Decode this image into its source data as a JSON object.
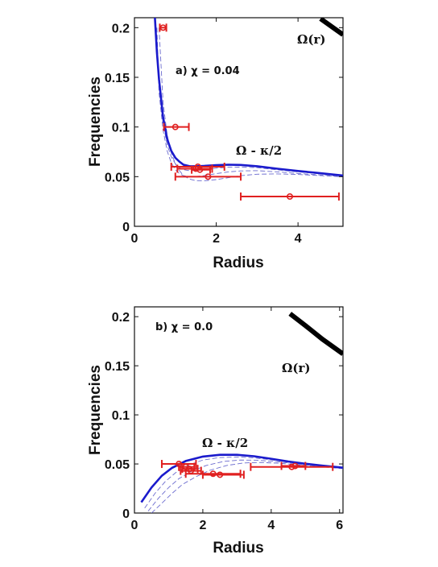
{
  "chart_data": [
    {
      "type": "line",
      "panel_label": "a) χ = 0.04",
      "xlabel": "Radius",
      "ylabel": "Frequencies",
      "xlim": [
        0,
        5.1
      ],
      "ylim": [
        0,
        0.21
      ],
      "xticks": [
        0,
        2,
        4
      ],
      "yticks": [
        0,
        0.05,
        0.1,
        0.15,
        0.2
      ],
      "xtick_labels": [
        "0",
        "2",
        "4"
      ],
      "ytick_labels": [
        "0",
        "0.05",
        "0.1",
        "0.15",
        "0.2"
      ],
      "annotations": [
        "Ω - κ/2",
        "Ω(r)"
      ],
      "omega_curve": {
        "x": [
          4.55,
          5.1
        ],
        "y": [
          0.209,
          0.193
        ]
      },
      "blue_curve": {
        "x": [
          0.5,
          0.55,
          0.6,
          0.7,
          0.8,
          0.9,
          1.0,
          1.1,
          1.2,
          1.35,
          1.5,
          1.7,
          2.0,
          2.3,
          2.6,
          3.0,
          3.5,
          4.0,
          4.5,
          5.1
        ],
        "y": [
          0.21,
          0.175,
          0.148,
          0.11,
          0.088,
          0.076,
          0.069,
          0.065,
          0.062,
          0.0605,
          0.0605,
          0.0608,
          0.0615,
          0.062,
          0.0618,
          0.0605,
          0.058,
          0.0557,
          0.0537,
          0.0512
        ]
      },
      "dashed_curves": [
        {
          "x": [
            0.5,
            0.6,
            0.7,
            0.8,
            0.9,
            1.0,
            1.1,
            1.2,
            1.35,
            1.5,
            1.7,
            2.0,
            2.3,
            2.6,
            3.0,
            3.5,
            4.0,
            4.5,
            5.1
          ],
          "y": [
            0.21,
            0.142,
            0.104,
            0.082,
            0.07,
            0.063,
            0.059,
            0.057,
            0.056,
            0.0562,
            0.057,
            0.0585,
            0.0595,
            0.0596,
            0.059,
            0.0568,
            0.0548,
            0.053,
            0.0507
          ]
        },
        {
          "x": [
            0.55,
            0.6,
            0.7,
            0.8,
            0.9,
            1.0,
            1.1,
            1.2,
            1.35,
            1.5,
            1.7,
            2.0,
            2.3,
            2.6,
            3.0,
            3.5,
            4.0,
            4.5,
            5.1
          ],
          "y": [
            0.2,
            0.135,
            0.097,
            0.076,
            0.064,
            0.057,
            0.053,
            0.051,
            0.05,
            0.0502,
            0.051,
            0.053,
            0.0548,
            0.0558,
            0.056,
            0.0548,
            0.0532,
            0.0518,
            0.05
          ]
        },
        {
          "x": [
            0.6,
            0.7,
            0.8,
            0.9,
            1.0,
            1.1,
            1.2,
            1.35,
            1.5,
            1.7,
            2.0,
            2.3,
            2.6,
            3.0,
            3.5,
            4.0,
            4.5,
            5.1
          ],
          "y": [
            0.2,
            0.125,
            0.092,
            0.074,
            0.063,
            0.056,
            0.051,
            0.0475,
            0.046,
            0.0458,
            0.047,
            0.049,
            0.051,
            0.0525,
            0.0528,
            0.0522,
            0.0512,
            0.0498
          ]
        }
      ],
      "error_points": [
        {
          "x": 0.7,
          "y": 0.2,
          "xerr": [
            0.62,
            0.78
          ]
        },
        {
          "x": 1.0,
          "y": 0.1,
          "xerr": [
            0.72,
            1.33
          ]
        },
        {
          "x": 1.5,
          "y": 0.058,
          "xerr": [
            1.05,
            1.9
          ]
        },
        {
          "x": 1.55,
          "y": 0.06,
          "xerr": [
            0.9,
            2.2
          ]
        },
        {
          "x": 1.6,
          "y": 0.057,
          "xerr": [
            1.4,
            1.85
          ]
        },
        {
          "x": 1.8,
          "y": 0.05,
          "xerr": [
            1.0,
            2.6
          ]
        },
        {
          "x": 3.8,
          "y": 0.03,
          "xerr": [
            2.6,
            5.0
          ]
        }
      ]
    },
    {
      "type": "line",
      "panel_label": "b) χ = 0.0",
      "xlabel": "Radius",
      "ylabel": "Frequencies",
      "xlim": [
        0,
        6.1
      ],
      "ylim": [
        0,
        0.21
      ],
      "xticks": [
        0,
        2,
        4,
        6
      ],
      "yticks": [
        0,
        0.05,
        0.1,
        0.15,
        0.2
      ],
      "xtick_labels": [
        "0",
        "2",
        "4",
        "6"
      ],
      "ytick_labels": [
        "0",
        "0.05",
        "0.1",
        "0.15",
        "0.2"
      ],
      "annotations": [
        "Ω - κ/2",
        "Ω(r)"
      ],
      "omega_curve": {
        "x": [
          4.55,
          5.0,
          5.5,
          6.1
        ],
        "y": [
          0.203,
          0.191,
          0.177,
          0.162
        ]
      },
      "blue_curve": {
        "x": [
          0.2,
          0.5,
          0.8,
          1.1,
          1.5,
          2.0,
          2.5,
          3.0,
          3.5,
          4.0,
          4.5,
          5.0,
          5.5,
          6.1
        ],
        "y": [
          0.011,
          0.026,
          0.038,
          0.046,
          0.053,
          0.0575,
          0.0593,
          0.0593,
          0.0578,
          0.0553,
          0.0525,
          0.0502,
          0.0482,
          0.0462
        ]
      },
      "dashed_curves": [
        {
          "x": [
            0.3,
            0.6,
            0.9,
            1.2,
            1.6,
            2.0,
            2.5,
            3.0,
            3.5,
            4.0,
            4.5,
            5.0,
            5.5,
            6.1
          ],
          "y": [
            0.005,
            0.02,
            0.032,
            0.041,
            0.049,
            0.054,
            0.0565,
            0.0572,
            0.0562,
            0.0542,
            0.0518,
            0.0496,
            0.0477,
            0.0458
          ]
        },
        {
          "x": [
            0.4,
            0.7,
            1.0,
            1.3,
            1.7,
            2.1,
            2.6,
            3.1,
            3.6,
            4.1,
            4.6,
            5.1,
            5.6,
            6.1
          ],
          "y": [
            0.002,
            0.015,
            0.026,
            0.035,
            0.043,
            0.0485,
            0.0525,
            0.054,
            0.0538,
            0.0525,
            0.0507,
            0.0488,
            0.0471,
            0.0455
          ]
        },
        {
          "x": [
            0.5,
            0.8,
            1.1,
            1.4,
            1.8,
            2.2,
            2.7,
            3.2,
            3.7,
            4.2,
            4.7,
            5.2,
            5.7,
            6.1
          ],
          "y": [
            0.0,
            0.01,
            0.02,
            0.029,
            0.037,
            0.0435,
            0.0485,
            0.051,
            0.0515,
            0.0508,
            0.0494,
            0.0478,
            0.0464,
            0.0452
          ]
        }
      ],
      "error_points": [
        {
          "x": 1.3,
          "y": 0.05,
          "xerr": [
            0.8,
            1.8
          ]
        },
        {
          "x": 1.5,
          "y": 0.047,
          "xerr": [
            1.3,
            1.75
          ]
        },
        {
          "x": 1.6,
          "y": 0.045,
          "xerr": [
            1.4,
            1.85
          ]
        },
        {
          "x": 1.65,
          "y": 0.043,
          "xerr": [
            1.35,
            1.95
          ]
        },
        {
          "x": 2.3,
          "y": 0.04,
          "xerr": [
            1.5,
            3.1
          ]
        },
        {
          "x": 2.5,
          "y": 0.039,
          "xerr": [
            2.0,
            3.2
          ]
        },
        {
          "x": 4.6,
          "y": 0.047,
          "xerr": [
            3.4,
            5.8
          ]
        },
        {
          "x": 4.7,
          "y": 0.048,
          "xerr": [
            4.3,
            5.0
          ]
        }
      ]
    }
  ],
  "colors": {
    "blue_curve": "#1a1acc",
    "dashed": "#6b6bcf",
    "error_points": "#e02020",
    "omega": "#000000",
    "axes": "#111111"
  }
}
